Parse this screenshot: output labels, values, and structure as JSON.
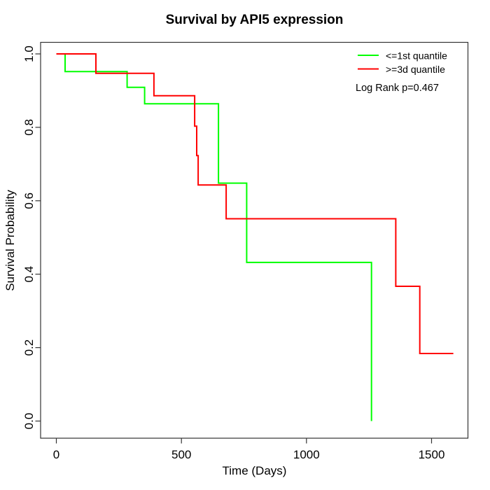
{
  "title": "Survival by API5 expression",
  "chart_data": {
    "type": "line",
    "subtype": "kaplan-meier-step",
    "title": "Survival by API5 expression",
    "xlabel": "Time (Days)",
    "ylabel": "Survival Probability",
    "xlim": [
      0,
      1600
    ],
    "ylim": [
      0,
      1
    ],
    "x_ticks": [
      0,
      500,
      1000,
      1500
    ],
    "y_ticks": [
      0,
      0.2,
      0.4,
      0.6,
      0.8,
      1
    ],
    "y_tick_labels": [
      "0.0",
      "0.2",
      "0.4",
      "0.6",
      "0.8",
      "1.0"
    ],
    "grid": false,
    "legend_position": "top-right",
    "annotation": "Log Rank p=0.467",
    "axis_color": "#333333",
    "series": [
      {
        "name": "<=1st quantile",
        "color": "#00ff00",
        "steps": [
          [
            0,
            1.0
          ],
          [
            35,
            0.952
          ],
          [
            283,
            0.909
          ],
          [
            353,
            0.864
          ],
          [
            648,
            0.648
          ],
          [
            761,
            0.432
          ],
          [
            1260,
            0.0
          ]
        ],
        "end_time": 1260
      },
      {
        "name": ">=3d quantile",
        "color": "#ff0000",
        "steps": [
          [
            0,
            1.0
          ],
          [
            158,
            0.947
          ],
          [
            390,
            0.886
          ],
          [
            553,
            0.803
          ],
          [
            561,
            0.723
          ],
          [
            567,
            0.643
          ],
          [
            679,
            0.551
          ],
          [
            1357,
            0.367
          ],
          [
            1453,
            0.184
          ]
        ],
        "end_time": 1587
      }
    ]
  }
}
